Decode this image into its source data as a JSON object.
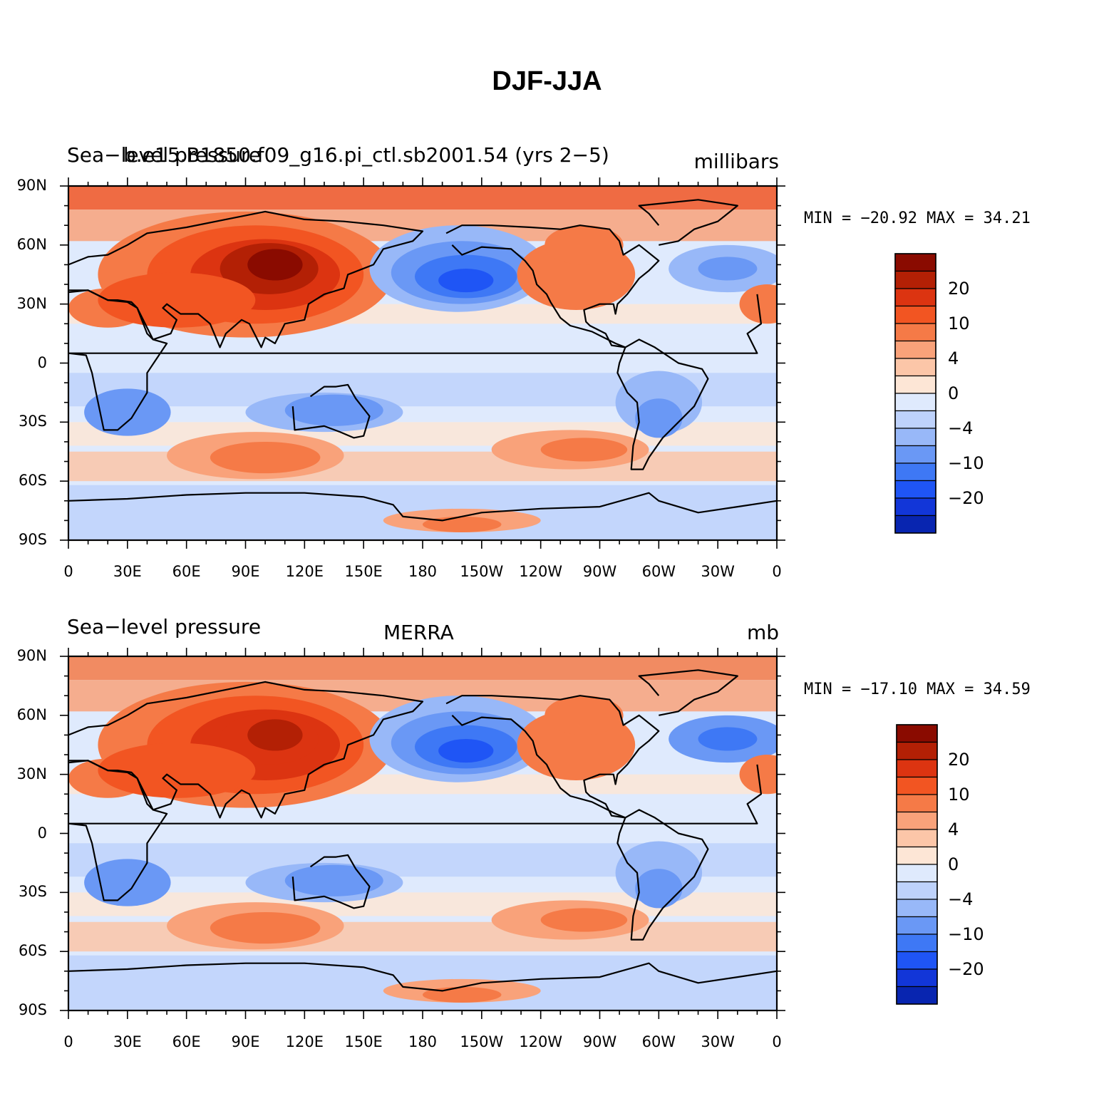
{
  "title": "DJF-JJA",
  "colors": {
    "scale": [
      "#0c0c8a",
      "#0825b0",
      "#1236d8",
      "#1f55f5",
      "#3e78f5",
      "#6a98f5",
      "#98b8f8",
      "#bed2fb",
      "#dfeafd",
      "#fde6d6",
      "#fcc6a8",
      "#f9a27a",
      "#f57a47",
      "#f25522",
      "#dc3411",
      "#b32005",
      "#8a0b00"
    ],
    "coast": "#000000"
  },
  "map_axes": {
    "lon_labels": [
      "0",
      "30E",
      "60E",
      "90E",
      "120E",
      "150E",
      "180",
      "150W",
      "120W",
      "90W",
      "60W",
      "30W",
      "0"
    ],
    "lat_labels": [
      "90N",
      "60N",
      "30N",
      "0",
      "30S",
      "60S",
      "90S"
    ]
  },
  "colorbar_labels": [
    "20",
    "10",
    "4",
    "0",
    "−4",
    "−10",
    "−20"
  ],
  "panels": [
    {
      "left_title": "Sea−level pressure",
      "center_title": "b.e15.B1850.f09_g16.pi_ctl.sb2001.54 (yrs 2−5)",
      "units": "millibars",
      "minmax": "MIN = −20.92  MAX =   34.21"
    },
    {
      "left_title": "Sea−level pressure",
      "center_title": "MERRA",
      "units": "mb",
      "minmax": "MIN = −17.10  MAX =   34.59"
    }
  ],
  "chart_data": {
    "type": "heatmap",
    "title": "DJF-JJA",
    "variable": "Sea-level pressure",
    "contour_levels": [
      -24,
      -20,
      -16,
      -12,
      -10,
      -8,
      -6,
      -4,
      -2,
      0,
      2,
      4,
      6,
      8,
      10,
      12,
      16,
      20,
      24
    ],
    "colorbar_ticks": [
      20,
      10,
      4,
      0,
      -4,
      -10,
      -20
    ],
    "projection": "cylindrical equidistant, centered on 180",
    "panels": [
      {
        "dataset": "b.e15.B1850.f09_g16.pi_ctl.sb2001.54 (yrs 2-5)",
        "units": "millibars",
        "min": -20.92,
        "max": 34.21
      },
      {
        "dataset": "MERRA",
        "units": "mb",
        "min": -17.1,
        "max": 34.59
      }
    ]
  }
}
